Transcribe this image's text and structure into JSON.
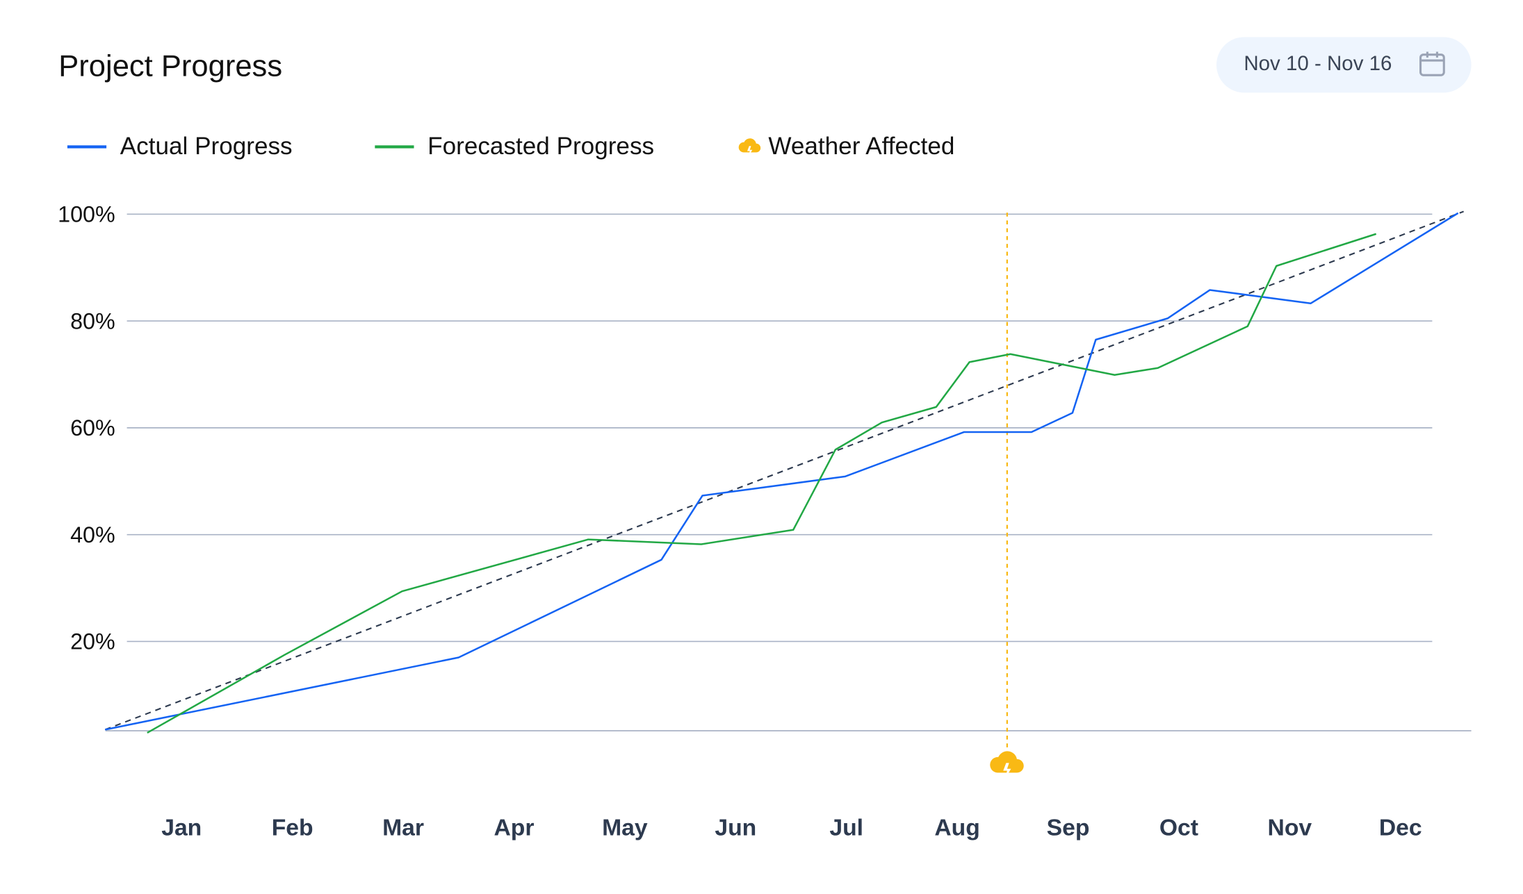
{
  "header": {
    "title": "Project Progress",
    "date_range": "Nov 10 - Nov 16",
    "calendar_icon": "calendar-icon"
  },
  "legend": [
    {
      "label": "Actual Progress",
      "color": "#1463f3"
    },
    {
      "label": "Forecasted Progress",
      "color": "#22a845"
    },
    {
      "label": "Weather Affected",
      "color": "#f9b914",
      "icon": "cloud-lightning-icon"
    }
  ],
  "chart_data": {
    "type": "line",
    "title": "Project Progress",
    "categories": [
      "Jan",
      "Feb",
      "Mar",
      "Apr",
      "May",
      "Jun",
      "Jul",
      "Aug",
      "Sep",
      "Oct",
      "Nov",
      "Dec"
    ],
    "y_ticks": [
      "20%",
      "40%",
      "60%",
      "80%",
      "100%"
    ],
    "ylim": [
      0,
      100
    ],
    "grid": "horizontal",
    "legend_placement": "top-left",
    "series": [
      {
        "name": "Actual Progress",
        "color": "#1463f3",
        "points": [
          [
            -0.69,
            3.5
          ],
          [
            2.5,
            17
          ],
          [
            4.33,
            35.3
          ],
          [
            4.7,
            47.3
          ],
          [
            5.99,
            50.9
          ],
          [
            7.06,
            59.2
          ],
          [
            7.67,
            59.2
          ],
          [
            8.04,
            62.8
          ],
          [
            8.25,
            76.5
          ],
          [
            8.9,
            80.5
          ],
          [
            9.28,
            85.8
          ],
          [
            10.19,
            83.3
          ],
          [
            11.52,
            100.2
          ]
        ]
      },
      {
        "name": "Forecasted Progress",
        "color": "#22a845",
        "points": [
          [
            -0.31,
            2.9
          ],
          [
            0.93,
            17.5
          ],
          [
            1.99,
            29.4
          ],
          [
            3.67,
            39.1
          ],
          [
            4.69,
            38.2
          ],
          [
            5.52,
            40.9
          ],
          [
            5.9,
            55.9
          ],
          [
            6.32,
            61
          ],
          [
            6.81,
            63.9
          ],
          [
            7.11,
            72.3
          ],
          [
            7.48,
            73.8
          ],
          [
            8.42,
            69.9
          ],
          [
            8.81,
            71.2
          ],
          [
            9.62,
            79
          ],
          [
            9.88,
            90.3
          ],
          [
            10.78,
            96.3
          ]
        ]
      }
    ],
    "trend_line": {
      "color": "#2d3a4f",
      "style": "dashed",
      "points": [
        [
          -0.69,
          3.5
        ],
        [
          11.57,
          100.5
        ]
      ]
    },
    "weather_event": {
      "x": 7.45,
      "color": "#f9b914",
      "icon": "cloud-lightning-icon"
    }
  }
}
